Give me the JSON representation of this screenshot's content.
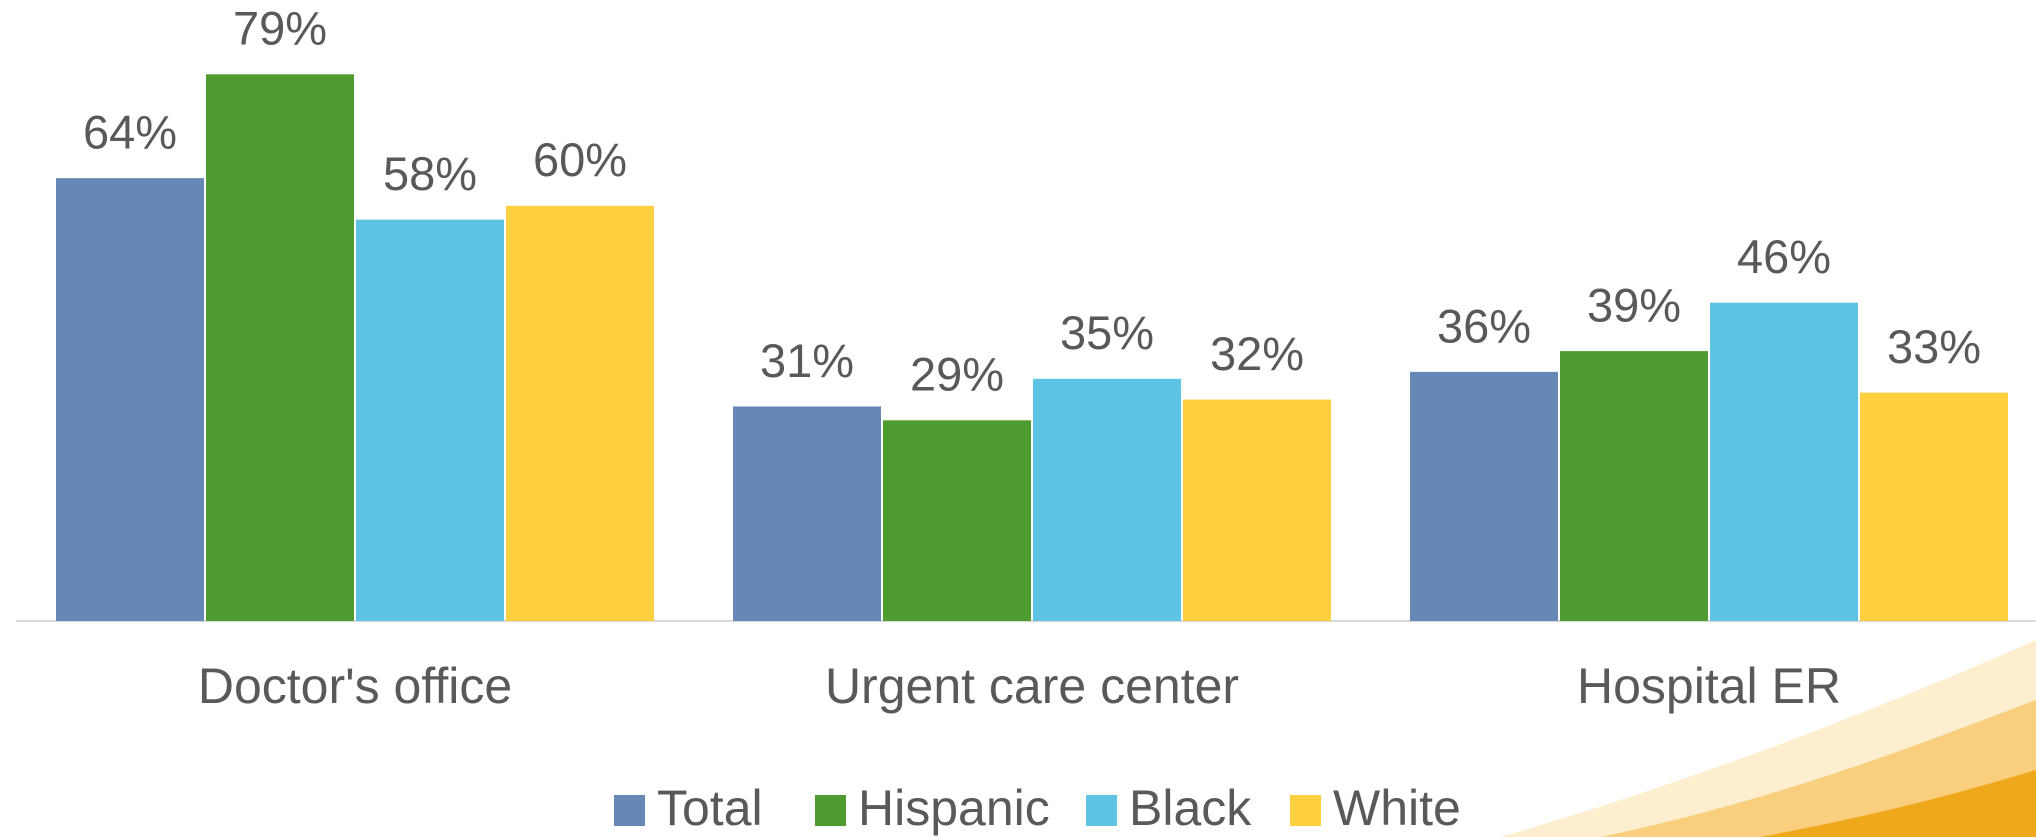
{
  "chart_data": {
    "type": "bar",
    "categories": [
      "Doctor's office",
      "Urgent care center",
      "Hospital ER"
    ],
    "series": [
      {
        "name": "Total",
        "color": "#6787b7",
        "values": [
          64,
          31,
          36
        ],
        "value_labels": [
          "64%",
          "31%",
          "36%"
        ]
      },
      {
        "name": "Hispanic",
        "color": "#4e9c2f",
        "values": [
          79,
          29,
          39
        ],
        "value_labels": [
          "79%",
          "29%",
          "39%"
        ]
      },
      {
        "name": "Black",
        "color": "#5fc3e4",
        "values": [
          58,
          35,
          46
        ],
        "value_labels": [
          "58%",
          "35%",
          "46%"
        ]
      },
      {
        "name": "White",
        "color": "#fed03f",
        "values": [
          60,
          32,
          33
        ],
        "value_labels": [
          "60%",
          "32%",
          "33%"
        ]
      }
    ],
    "legend": "bottom"
  }
}
